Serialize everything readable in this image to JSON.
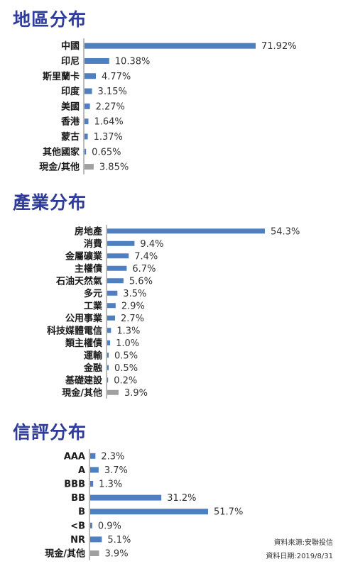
{
  "colors": {
    "title": "#2f3c9a",
    "bar": "#4f7fc0",
    "cash_bar": "#a0a0a0",
    "axis": "#7a7a7a"
  },
  "sections": {
    "region_title": "地區分布",
    "industry_title": "產業分布",
    "credit_title": "信評分布"
  },
  "source": {
    "line1": "資料來源:安聯投信",
    "line2": "資料日期:2019/8/31"
  },
  "chart_data": [
    {
      "type": "bar",
      "orientation": "horizontal",
      "title": "地區分布",
      "categories": [
        "中國",
        "印尼",
        "斯里蘭卡",
        "印度",
        "美國",
        "香港",
        "蒙古",
        "其他國家",
        "現金/其他"
      ],
      "values": [
        71.92,
        10.38,
        4.77,
        3.15,
        2.27,
        1.64,
        1.37,
        0.65,
        3.85
      ],
      "labels": [
        "71.92%",
        "10.38%",
        "4.77%",
        "3.15%",
        "2.27%",
        "1.64%",
        "1.37%",
        "0.65%",
        "3.85%"
      ],
      "highlight_gray": [
        "現金/其他"
      ]
    },
    {
      "type": "bar",
      "orientation": "horizontal",
      "title": "產業分布",
      "categories": [
        "房地產",
        "消費",
        "金屬礦業",
        "主權債",
        "石油天然氣",
        "多元",
        "工業",
        "公用事業",
        "科技媒體電信",
        "類主權債",
        "運輸",
        "金融",
        "基礎建設",
        "現金/其他"
      ],
      "values": [
        54.3,
        9.4,
        7.4,
        6.7,
        5.6,
        3.5,
        2.9,
        2.7,
        1.3,
        1.0,
        0.5,
        0.5,
        0.2,
        3.9
      ],
      "labels": [
        "54.3%",
        "9.4%",
        "7.4%",
        "6.7%",
        "5.6%",
        "3.5%",
        "2.9%",
        "2.7%",
        "1.3%",
        "1.0%",
        "0.5%",
        "0.5%",
        "0.2%",
        "3.9%"
      ],
      "highlight_gray": [
        "現金/其他"
      ]
    },
    {
      "type": "bar",
      "orientation": "horizontal",
      "title": "信評分布",
      "categories": [
        "AAA",
        "A",
        "BBB",
        "BB",
        "B",
        "<B",
        "NR",
        "現金/其他"
      ],
      "values": [
        2.3,
        3.7,
        1.3,
        31.2,
        51.7,
        0.9,
        5.1,
        3.9
      ],
      "labels": [
        "2.3%",
        "3.7%",
        "1.3%",
        "31.2%",
        "51.7%",
        "0.9%",
        "5.1%",
        "3.9%"
      ],
      "highlight_gray": [
        "現金/其他"
      ]
    }
  ]
}
